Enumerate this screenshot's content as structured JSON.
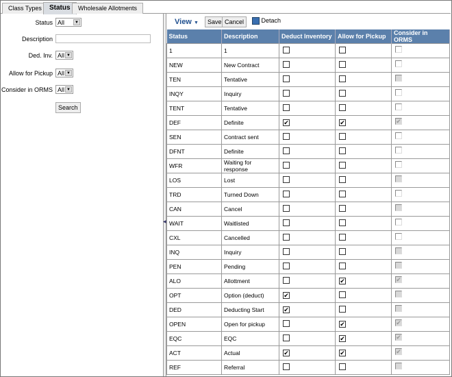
{
  "tabs": [
    "Class Types",
    "Status",
    "Wholesale Allotments"
  ],
  "filters": {
    "status_label": "Status",
    "status_value": "All",
    "description_label": "Description",
    "description_value": "",
    "ded_inv_label": "Ded. Inv.",
    "ded_inv_value": "All",
    "pickup_label": "Allow for Pickup",
    "pickup_value": "All",
    "orms_label": "Consider in ORMS",
    "orms_value": "All",
    "search": "Search"
  },
  "toolbar": {
    "view": "View",
    "save": "Save",
    "cancel": "Cancel",
    "detach": "Detach"
  },
  "columns": [
    "Status",
    "Description",
    "Deduct Inventory",
    "Allow for Pickup",
    "Consider in ORMS"
  ],
  "rows": [
    {
      "status": "1",
      "desc": "1",
      "ded": false,
      "pick": false,
      "orms": "none"
    },
    {
      "status": "NEW",
      "desc": "New Contract",
      "ded": false,
      "pick": false,
      "orms": "none"
    },
    {
      "status": "TEN",
      "desc": "Tentative",
      "ded": false,
      "pick": false,
      "orms": "grey"
    },
    {
      "status": "INQY",
      "desc": "Inquiry",
      "ded": false,
      "pick": false,
      "orms": "none"
    },
    {
      "status": "TENT",
      "desc": "Tentative",
      "ded": false,
      "pick": false,
      "orms": "none"
    },
    {
      "status": "DEF",
      "desc": "Definite",
      "ded": true,
      "pick": true,
      "orms": "checked"
    },
    {
      "status": "SEN",
      "desc": "Contract sent",
      "ded": false,
      "pick": false,
      "orms": "none"
    },
    {
      "status": "DFNT",
      "desc": "Definite",
      "ded": false,
      "pick": false,
      "orms": "none"
    },
    {
      "status": "WFR",
      "desc": "Waiting for response",
      "ded": false,
      "pick": false,
      "orms": "none"
    },
    {
      "status": "LOS",
      "desc": "Lost",
      "ded": false,
      "pick": false,
      "orms": "grey"
    },
    {
      "status": "TRD",
      "desc": "Turned Down",
      "ded": false,
      "pick": false,
      "orms": "none"
    },
    {
      "status": "CAN",
      "desc": "Cancel",
      "ded": false,
      "pick": false,
      "orms": "grey"
    },
    {
      "status": "WAIT",
      "desc": "Waitlisted",
      "ded": false,
      "pick": false,
      "orms": "none"
    },
    {
      "status": "CXL",
      "desc": "Cancelled",
      "ded": false,
      "pick": false,
      "orms": "none"
    },
    {
      "status": "INQ",
      "desc": "Inquiry",
      "ded": false,
      "pick": false,
      "orms": "grey"
    },
    {
      "status": "PEN",
      "desc": "Pending",
      "ded": false,
      "pick": false,
      "orms": "grey"
    },
    {
      "status": "ALO",
      "desc": "Allottment",
      "ded": false,
      "pick": true,
      "orms": "checked"
    },
    {
      "status": "OPT",
      "desc": "Option (deduct)",
      "ded": true,
      "pick": false,
      "orms": "grey"
    },
    {
      "status": "DED",
      "desc": "Deducting Start",
      "ded": true,
      "pick": false,
      "orms": "grey"
    },
    {
      "status": "OPEN",
      "desc": "Open for pickup",
      "ded": false,
      "pick": true,
      "orms": "checked"
    },
    {
      "status": "EQC",
      "desc": "EQC",
      "ded": false,
      "pick": true,
      "orms": "checked"
    },
    {
      "status": "ACT",
      "desc": "Actual",
      "ded": true,
      "pick": true,
      "orms": "checked"
    },
    {
      "status": "REF",
      "desc": "Referral",
      "ded": false,
      "pick": false,
      "orms": "grey"
    }
  ],
  "colors": {
    "header": "#5b80ab",
    "view": "#1f4f8f"
  }
}
